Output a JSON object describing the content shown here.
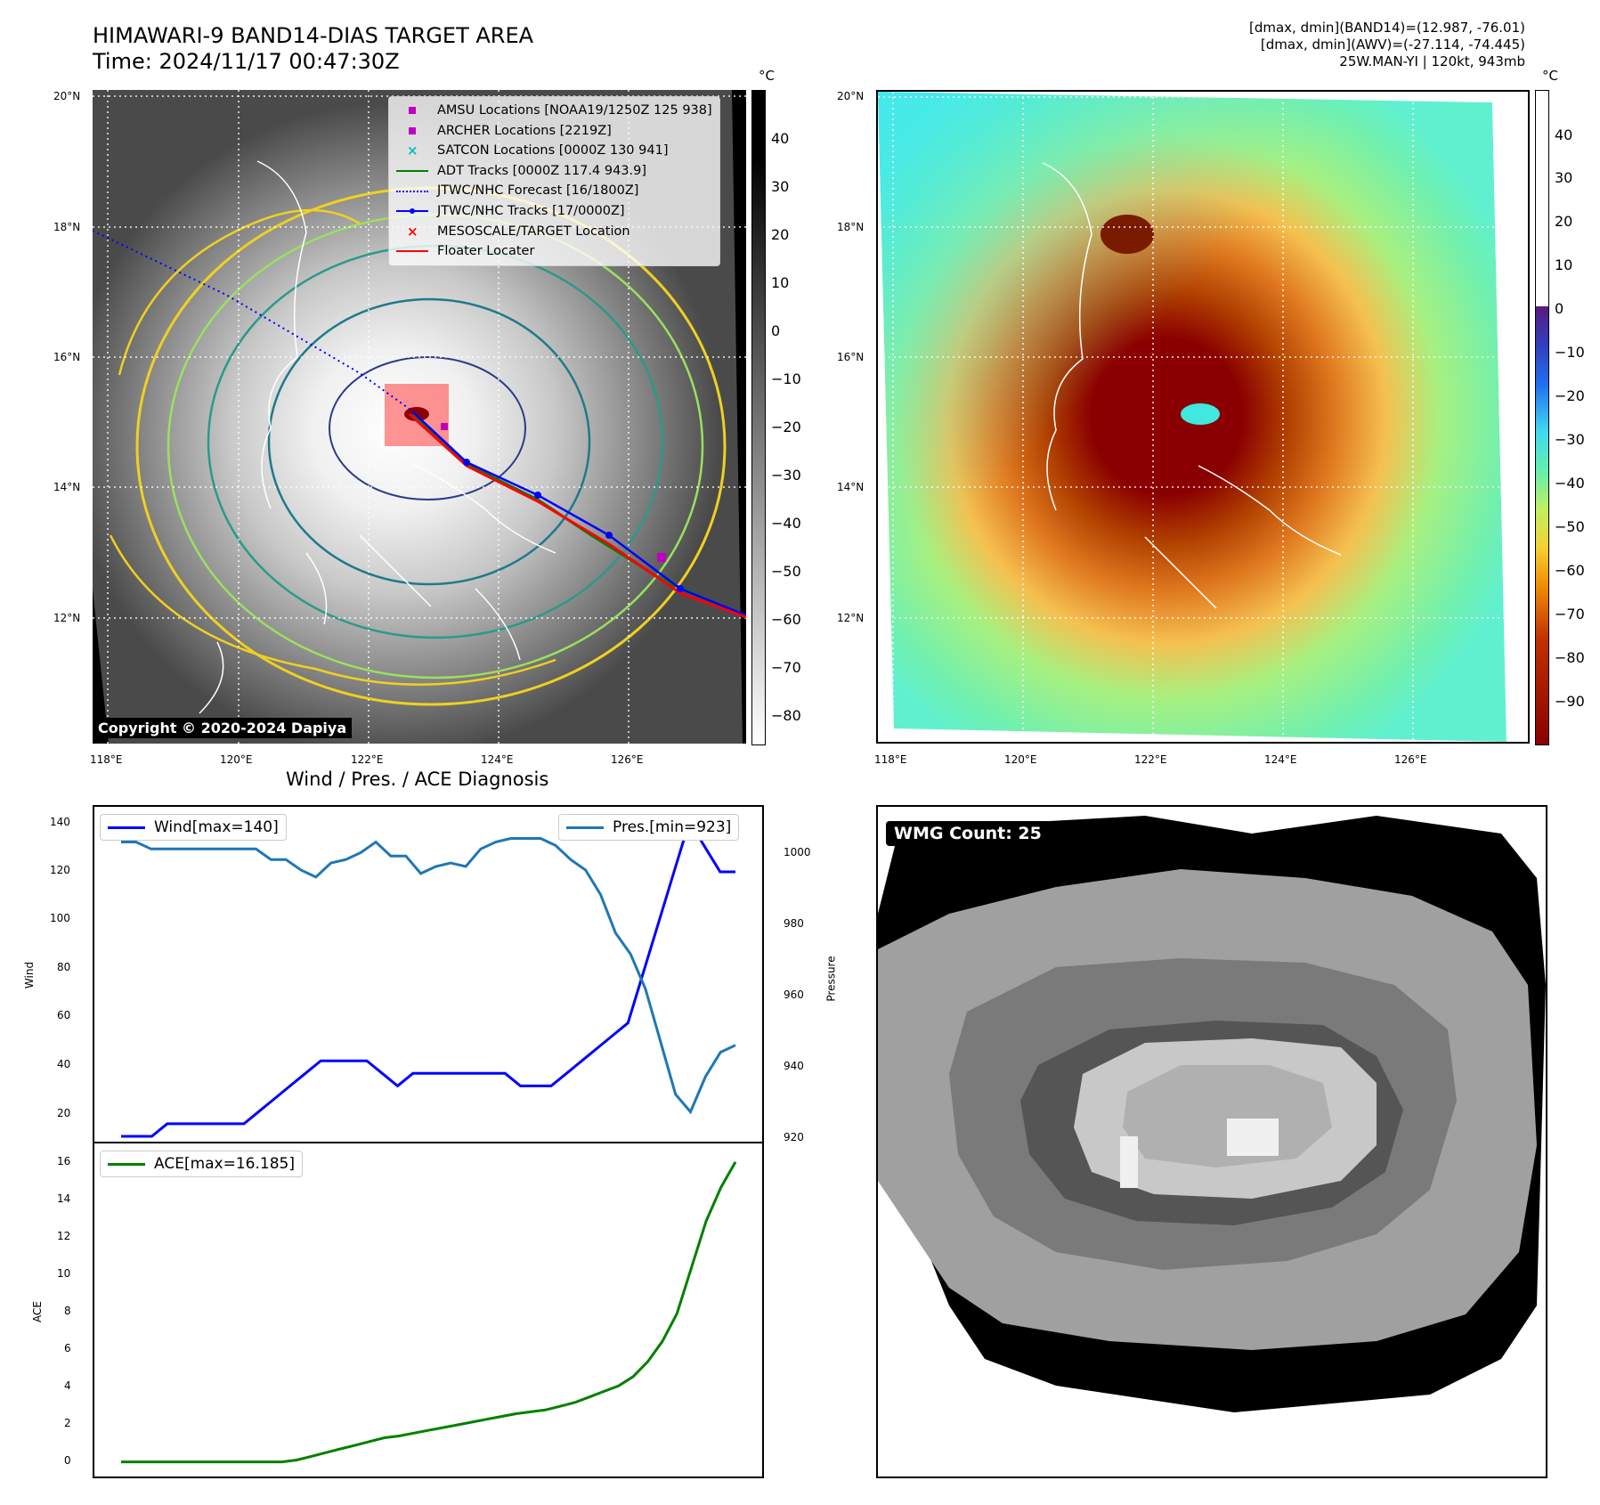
{
  "header": {
    "title_line1": "HIMAWARI-9 BAND14-DIAS TARGET AREA",
    "title_line2": "Time: 2024/11/17 00:47:30Z",
    "info_line1": "[dmax, dmin](BAND14)=(12.987, -76.01)",
    "info_line2": "[dmax, dmin](AWV)=(-27.114, -74.445)",
    "info_line3": "25W.MAN-YI | 120kt, 943mb"
  },
  "map": {
    "lat_labels": [
      "20°N",
      "18°N",
      "16°N",
      "14°N",
      "12°N"
    ],
    "lon_labels": [
      "118°E",
      "120°E",
      "122°E",
      "124°E",
      "126°E"
    ],
    "copyright": "Copyright © 2020-2024 Dapiya",
    "unit": "°C",
    "left_colorbar_ticks": [
      "40",
      "30",
      "20",
      "10",
      "0",
      "−10",
      "−20",
      "−30",
      "−40",
      "−50",
      "−60",
      "−70",
      "−80"
    ],
    "right_colorbar_ticks": [
      "40",
      "30",
      "20",
      "10",
      "0",
      "−10",
      "−20",
      "−30",
      "−40",
      "−50",
      "−60",
      "−70",
      "−80",
      "−90"
    ],
    "legend": [
      {
        "label": "AMSU Locations [NOAA19/1250Z 125 938]",
        "symbol": "square",
        "color": "#c000c0"
      },
      {
        "label": "ARCHER Locations [2219Z]",
        "symbol": "square",
        "color": "#c000c0"
      },
      {
        "label": "SATCON Locations [0000Z 130 941]",
        "symbol": "x",
        "color": "#00c0c0"
      },
      {
        "label": "ADT Tracks [0000Z 117.4 943.9]",
        "symbol": "line",
        "color": "#008000"
      },
      {
        "label": "JTWC/NHC Forecast [16/1800Z]",
        "symbol": "dotted",
        "color": "#0000ff"
      },
      {
        "label": "JTWC/NHC Tracks [17/0000Z]",
        "symbol": "line-dot",
        "color": "#0000ff"
      },
      {
        "label": "MESOSCALE/TARGET Location",
        "symbol": "x",
        "color": "#ff0000"
      },
      {
        "label": "Floater Locater",
        "symbol": "line",
        "color": "#ff0000"
      }
    ]
  },
  "diagnosis": {
    "title": "Wind / Pres. / ACE Diagnosis",
    "wind_legend": "Wind[max=140]",
    "pres_legend": "Pres.[min=923]",
    "ace_legend": "ACE[max=16.185]",
    "wind_axis_label": "Wind",
    "pres_axis_label": "Pressure",
    "ace_axis_label": "ACE",
    "wind_ticks": [
      "140",
      "120",
      "100",
      "80",
      "60",
      "40",
      "20"
    ],
    "pres_ticks": [
      "1000",
      "980",
      "960",
      "940",
      "920"
    ],
    "ace_ticks": [
      "16",
      "14",
      "12",
      "10",
      "8",
      "6",
      "4",
      "2",
      "0"
    ]
  },
  "wmg": {
    "badge": "WMG Count: 25"
  },
  "chart_data": [
    {
      "type": "line",
      "title": "Wind / Pres. / ACE Diagnosis",
      "ylabel": "Wind",
      "ylim": [
        15,
        143
      ],
      "series": [
        {
          "name": "Wind[max=140]",
          "color": "#0000ff",
          "values": [
            15,
            15,
            15,
            20,
            20,
            20,
            20,
            20,
            20,
            25,
            30,
            35,
            40,
            45,
            45,
            45,
            45,
            40,
            35,
            40,
            40,
            40,
            40,
            40,
            40,
            40,
            35,
            35,
            35,
            40,
            45,
            50,
            55,
            60,
            80,
            100,
            120,
            140,
            130,
            120,
            120
          ]
        }
      ]
    },
    {
      "type": "line",
      "ylabel": "Pressure",
      "ylim": [
        918,
        1010
      ],
      "series": [
        {
          "name": "Pres.[min=923]",
          "color": "#1f77b4",
          "values": [
            1002,
            1002,
            1000,
            1000,
            1000,
            1000,
            1000,
            1000,
            1000,
            1000,
            997,
            997,
            994,
            992,
            996,
            997,
            999,
            1002,
            998,
            998,
            993,
            995,
            996,
            995,
            1000,
            1002,
            1003,
            1003,
            1003,
            1001,
            997,
            994,
            987,
            976,
            970,
            960,
            945,
            930,
            925,
            935,
            942,
            944
          ]
        }
      ]
    },
    {
      "type": "line",
      "ylabel": "ACE",
      "ylim": [
        -0.5,
        16.8
      ],
      "series": [
        {
          "name": "ACE[max=16.185]",
          "color": "#008000",
          "values": [
            0,
            0,
            0,
            0,
            0,
            0,
            0,
            0,
            0,
            0,
            0,
            0,
            0.1,
            0.3,
            0.5,
            0.7,
            0.9,
            1.1,
            1.3,
            1.4,
            1.55,
            1.7,
            1.85,
            2.0,
            2.15,
            2.3,
            2.45,
            2.6,
            2.7,
            2.8,
            3.0,
            3.2,
            3.5,
            3.8,
            4.1,
            4.6,
            5.4,
            6.5,
            8.0,
            10.5,
            13.0,
            14.8,
            16.185
          ]
        }
      ]
    }
  ]
}
